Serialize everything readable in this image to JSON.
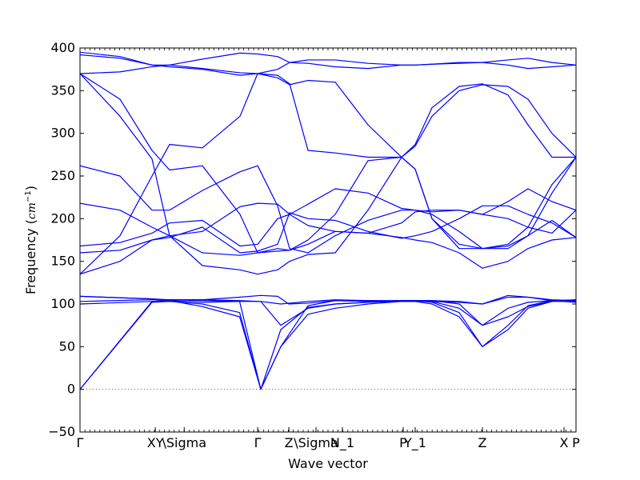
{
  "chart_data": {
    "type": "line",
    "title": "",
    "xlabel": "Wave vector",
    "ylabel": "Frequency",
    "ylabel_unit": "cm",
    "ylabel_unit_exp": "−1",
    "ylim": [
      -50,
      400
    ],
    "yticks": [
      -50,
      0,
      50,
      100,
      150,
      200,
      250,
      300,
      350,
      400
    ],
    "xlim": [
      0,
      1
    ],
    "xticks": [
      {
        "label": "Γ",
        "x": 0.0
      },
      {
        "label": "XY",
        "x": 0.1518
      },
      {
        "label": "\\Sigma",
        "x": 0.2101
      },
      {
        "label": "Γ",
        "x": 0.3582
      },
      {
        "label": "Z",
        "x": 0.4211
      },
      {
        "label": "\\Sigma",
        "x": 0.4758
      },
      {
        "label": "N_1",
        "x": 0.529
      },
      {
        "label": "P",
        "x": 0.6516
      },
      {
        "label": "Y_1",
        "x": 0.6758
      },
      {
        "label": "Z",
        "x": 0.8113
      },
      {
        "label": "X",
        "x": 0.9758
      },
      {
        "label": "P",
        "x": 1.0
      }
    ],
    "minor_tick_count": 100,
    "zero_line": true,
    "line_color": "#0000ff",
    "series": [
      {
        "x": [
          0,
          0.1452,
          0.1806,
          0.2468,
          0.3218,
          0.3645,
          0.4048,
          0.4597,
          0.5145,
          0.5806,
          0.6484,
          0.6758,
          0.7097,
          0.7645,
          0.8113,
          0.8629,
          0.9032,
          0.9516,
          1.0
        ],
        "y": [
          0,
          103,
          105,
          104,
          103,
          0,
          70,
          96,
          100,
          102,
          104,
          104,
          102,
          90,
          50,
          70,
          95,
          103,
          105
        ]
      },
      {
        "x": [
          0,
          0.1452,
          0.1806,
          0.2468,
          0.3218,
          0.3645,
          0.4048,
          0.4597,
          0.5145,
          0.5806,
          0.6484,
          0.6758,
          0.7097,
          0.7645,
          0.8113,
          0.8629,
          0.9032,
          0.9516,
          1.0
        ],
        "y": [
          0,
          102,
          103,
          100,
          90,
          0,
          50,
          88,
          95,
          100,
          103,
          103,
          100,
          85,
          50,
          75,
          98,
          104,
          105
        ]
      },
      {
        "x": [
          0,
          0.1452,
          0.1806,
          0.2468,
          0.3218,
          0.3645,
          0.4048,
          0.4597,
          0.5145,
          0.5806,
          0.6484,
          0.6758,
          0.7097,
          0.7645,
          0.8113,
          0.8629,
          0.9032,
          0.9516,
          1.0
        ],
        "y": [
          100,
          103,
          104,
          97,
          85,
          0,
          50,
          98,
          104,
          104,
          104,
          104,
          103,
          95,
          75,
          95,
          102,
          104,
          104
        ]
      },
      {
        "x": [
          0,
          0.1452,
          0.1806,
          0.2468,
          0.3218,
          0.3645,
          0.4048,
          0.4597,
          0.5145,
          0.5806,
          0.6484,
          0.6758,
          0.7097,
          0.7645,
          0.8113,
          0.8629,
          0.9032,
          0.9516,
          1.0
        ],
        "y": [
          103,
          105,
          105,
          105,
          104,
          103,
          100,
          103,
          105,
          104,
          103,
          104,
          104,
          100,
          75,
          85,
          97,
          103,
          103
        ]
      },
      {
        "x": [
          0,
          0.1452,
          0.1806,
          0.2468,
          0.3218,
          0.3645,
          0.4048,
          0.4597,
          0.5145,
          0.5806,
          0.6484,
          0.6758,
          0.7097,
          0.7645,
          0.8113,
          0.8629,
          0.9032,
          0.9516,
          1.0
        ],
        "y": [
          109,
          106,
          104,
          102,
          103,
          103,
          75,
          95,
          100,
          102,
          103,
          103,
          103,
          102,
          100,
          108,
          108,
          104,
          102
        ]
      },
      {
        "x": [
          0,
          0.1452,
          0.1806,
          0.2468,
          0.3218,
          0.3645,
          0.3984,
          0.421,
          0.4597,
          0.5145,
          0.5806,
          0.6484,
          0.6758,
          0.7097,
          0.7645,
          0.8113,
          0.8629,
          0.9032,
          0.9516,
          1.0
        ],
        "y": [
          109,
          106,
          105,
          105,
          108,
          110,
          109,
          100,
          101,
          104,
          103,
          104,
          104,
          104,
          103,
          100,
          110,
          108,
          105,
          104
        ]
      },
      {
        "x": [
          0,
          0.0806,
          0.1452,
          0.1806,
          0.2468,
          0.3226,
          0.3582,
          0.3984,
          0.4226,
          0.4597,
          0.5145,
          0.5806,
          0.6484,
          0.6758,
          0.7097,
          0.7645,
          0.8113,
          0.8629,
          0.9032,
          0.9516,
          1.0
        ],
        "y": [
          135,
          150,
          175,
          180,
          160,
          157,
          160,
          165,
          163,
          170,
          185,
          183,
          178,
          175,
          172,
          160,
          142,
          150,
          165,
          175,
          178
        ]
      },
      {
        "x": [
          0,
          0.0806,
          0.1452,
          0.1806,
          0.2468,
          0.3226,
          0.3582,
          0.3984,
          0.4226,
          0.4597,
          0.5145,
          0.5806,
          0.6484,
          0.6758,
          0.7097,
          0.7645,
          0.8113,
          0.8629,
          0.9032,
          0.9516,
          1.0
        ],
        "y": [
          160,
          163,
          175,
          178,
          190,
          160,
          162,
          170,
          207,
          200,
          198,
          185,
          177,
          180,
          185,
          200,
          215,
          215,
          205,
          195,
          178
        ]
      },
      {
        "x": [
          0,
          0.0806,
          0.1452,
          0.1806,
          0.2468,
          0.3226,
          0.3582,
          0.3984,
          0.4226,
          0.4597,
          0.5145,
          0.5806,
          0.6484,
          0.6758,
          0.7097,
          0.7645,
          0.8113,
          0.8629,
          0.9032,
          0.9516,
          1.0
        ],
        "y": [
          168,
          172,
          183,
          195,
          198,
          168,
          170,
          200,
          205,
          217,
          235,
          230,
          212,
          210,
          208,
          210,
          205,
          200,
          190,
          183,
          210
        ]
      },
      {
        "x": [
          0,
          0.0806,
          0.1452,
          0.1806,
          0.2468,
          0.3226,
          0.3582,
          0.3984,
          0.4226,
          0.4597,
          0.5145,
          0.5806,
          0.6484,
          0.6758,
          0.7097,
          0.7645,
          0.8113,
          0.8629,
          0.9032,
          0.9516,
          1.0
        ],
        "y": [
          218,
          210,
          190,
          180,
          185,
          214,
          218,
          217,
          205,
          192,
          185,
          183,
          195,
          208,
          210,
          210,
          205,
          220,
          235,
          220,
          210
        ]
      },
      {
        "x": [
          0,
          0.0806,
          0.1452,
          0.1806,
          0.2468,
          0.3226,
          0.3582,
          0.3984,
          0.4226,
          0.4597,
          0.5145,
          0.5806,
          0.6484,
          0.6758,
          0.7097,
          0.7645,
          0.8113,
          0.8629,
          0.9032,
          0.9516,
          1.0
        ],
        "y": [
          262,
          250,
          210,
          210,
          233,
          255,
          262,
          215,
          165,
          160,
          180,
          198,
          210,
          210,
          205,
          185,
          165,
          165,
          180,
          198,
          178
        ]
      },
      {
        "x": [
          0,
          0.0806,
          0.1452,
          0.1806,
          0.2468,
          0.3226,
          0.3582,
          0.3984,
          0.4226,
          0.4597,
          0.5145,
          0.5806,
          0.6484,
          0.6758,
          0.7097,
          0.7645,
          0.8113,
          0.8629,
          0.9032,
          0.9516,
          1.0
        ],
        "y": [
          370,
          320,
          270,
          180,
          145,
          140,
          135,
          140,
          150,
          158,
          160,
          210,
          272,
          258,
          200,
          165,
          165,
          168,
          180,
          230,
          272
        ]
      },
      {
        "x": [
          0,
          0.0806,
          0.1452,
          0.1806,
          0.2468,
          0.3226,
          0.3582,
          0.3984,
          0.4226,
          0.4597,
          0.5145,
          0.5806,
          0.6484,
          0.6758,
          0.7097,
          0.7645,
          0.8113,
          0.8629,
          0.9032,
          0.9516,
          1.0
        ],
        "y": [
          370,
          340,
          280,
          257,
          262,
          205,
          160,
          162,
          163,
          175,
          205,
          268,
          272,
          287,
          330,
          355,
          358,
          345,
          310,
          272,
          272
        ]
      },
      {
        "x": [
          0,
          0.0806,
          0.1452,
          0.1806,
          0.2468,
          0.3226,
          0.3582,
          0.3984,
          0.4226,
          0.4597,
          0.5145,
          0.5806,
          0.6484,
          0.6758,
          0.7097,
          0.7645,
          0.8113,
          0.8629,
          0.9032,
          0.9516,
          1.0
        ],
        "y": [
          135,
          180,
          250,
          287,
          283,
          320,
          370,
          368,
          358,
          280,
          277,
          272,
          272,
          258,
          200,
          170,
          165,
          170,
          190,
          240,
          272
        ]
      },
      {
        "x": [
          0,
          0.0806,
          0.1452,
          0.1806,
          0.2468,
          0.3226,
          0.3582,
          0.3984,
          0.4226,
          0.4597,
          0.5145,
          0.5806,
          0.6484,
          0.6758,
          0.7097,
          0.7645,
          0.8113,
          0.8629,
          0.9032,
          0.9516,
          1.0
        ],
        "y": [
          370,
          372,
          378,
          380,
          376,
          371,
          370,
          365,
          357,
          362,
          360,
          310,
          272,
          285,
          320,
          350,
          357,
          355,
          340,
          300,
          272
        ]
      },
      {
        "x": [
          0,
          0.0806,
          0.1452,
          0.1806,
          0.2468,
          0.3226,
          0.3582,
          0.3984,
          0.4226,
          0.4597,
          0.5145,
          0.5806,
          0.6484,
          0.6758,
          0.7097,
          0.7645,
          0.8113,
          0.8629,
          0.9032,
          0.9516,
          1.0
        ],
        "y": [
          395,
          390,
          380,
          380,
          387,
          394,
          393,
          390,
          383,
          382,
          378,
          376,
          380,
          380,
          381,
          383,
          383,
          380,
          376,
          378,
          380
        ]
      },
      {
        "x": [
          0,
          0.0806,
          0.1452,
          0.1806,
          0.2468,
          0.3226,
          0.3582,
          0.3984,
          0.4226,
          0.4597,
          0.5145,
          0.5806,
          0.6484,
          0.6758,
          0.7097,
          0.7645,
          0.8113,
          0.8629,
          0.9032,
          0.9516,
          1.0
        ],
        "y": [
          392,
          388,
          380,
          378,
          375,
          368,
          370,
          375,
          383,
          386,
          386,
          382,
          380,
          380,
          381,
          382,
          383,
          386,
          388,
          383,
          380
        ]
      }
    ]
  }
}
